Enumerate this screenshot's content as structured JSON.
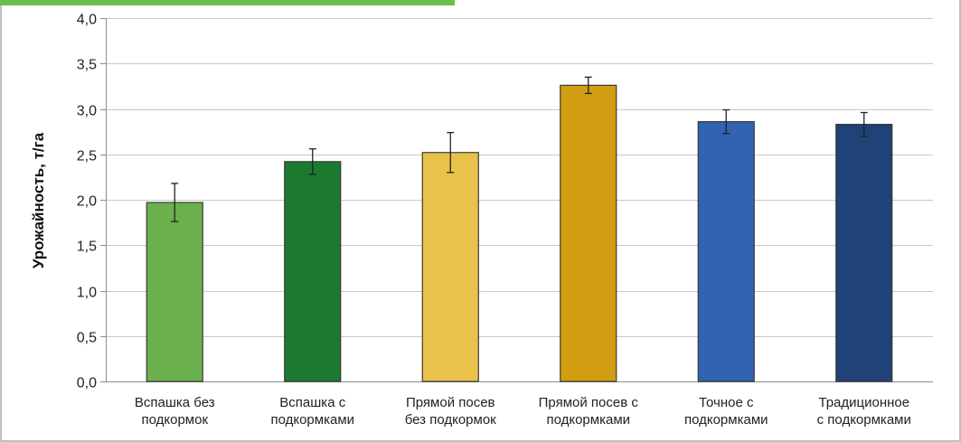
{
  "chart_data": {
    "type": "bar",
    "categories": [
      [
        "Вспашка без",
        "подкормок"
      ],
      [
        "Вспашка с",
        "подкормками"
      ],
      [
        "Прямой посев",
        "без подкормок"
      ],
      [
        "Прямой посев с",
        "подкормками"
      ],
      [
        "Точное с",
        "подкормками"
      ],
      [
        "Традиционное",
        "с подкормками"
      ]
    ],
    "values": [
      1.97,
      2.42,
      2.52,
      3.26,
      2.86,
      2.83
    ],
    "errors": [
      0.21,
      0.14,
      0.22,
      0.09,
      0.13,
      0.13
    ],
    "bar_colors": [
      "#6ab04c",
      "#1b7a2e",
      "#e8c24a",
      "#d09e10",
      "#3163b1",
      "#1f4279"
    ],
    "title": "",
    "xlabel": "",
    "ylabel": "Урожайность, т/га",
    "ylim": [
      0,
      4
    ],
    "yticks": [
      "0,0",
      "0,5",
      "1,0",
      "1,5",
      "2,0",
      "2,5",
      "3,0",
      "3,5",
      "4,0"
    ],
    "grid": true
  },
  "accent_color": "#6cc04a"
}
